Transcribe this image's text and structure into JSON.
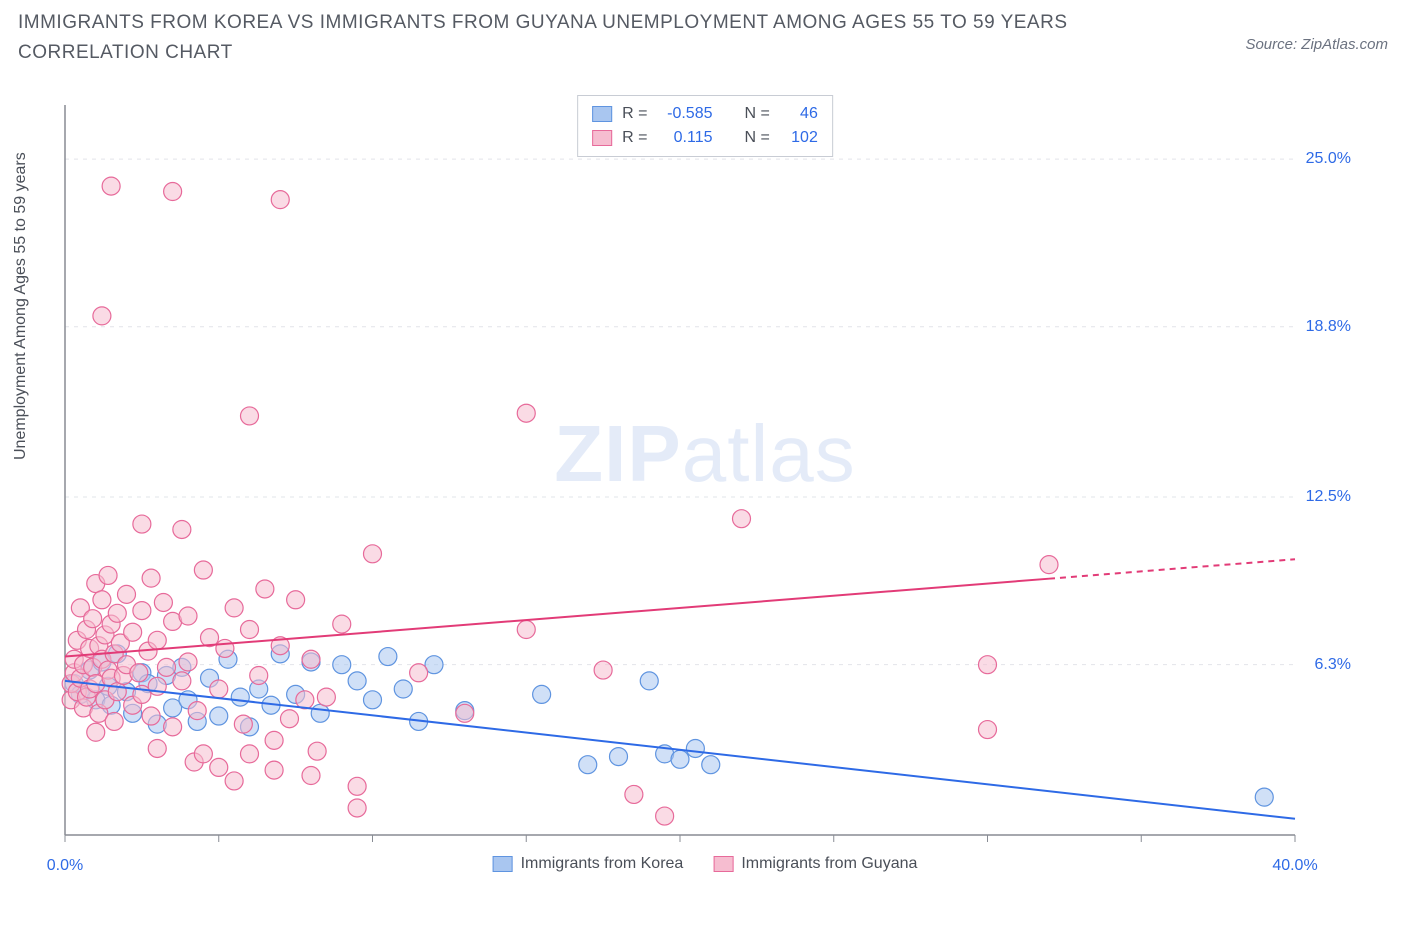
{
  "title": "IMMIGRANTS FROM KOREA VS IMMIGRANTS FROM GUYANA UNEMPLOYMENT AMONG AGES 55 TO 59 YEARS CORRELATION CHART",
  "source": "Source: ZipAtlas.com",
  "y_axis_label": "Unemployment Among Ages 55 to 59 years",
  "watermark_bold": "ZIP",
  "watermark_light": "atlas",
  "chart": {
    "type": "scatter",
    "background_color": "#ffffff",
    "grid_color": "#e2e4e9",
    "axis_color": "#888c94",
    "xlim": [
      0,
      40
    ],
    "ylim": [
      0,
      27
    ],
    "y_ticks": [
      {
        "v": 6.3,
        "label": "6.3%"
      },
      {
        "v": 12.5,
        "label": "12.5%"
      },
      {
        "v": 18.8,
        "label": "18.8%"
      },
      {
        "v": 25.0,
        "label": "25.0%"
      }
    ],
    "x_ticks_minor": [
      0,
      5,
      10,
      15,
      20,
      25,
      30,
      35,
      40
    ],
    "x_tick_labels": [
      {
        "v": 0,
        "label": "0.0%"
      },
      {
        "v": 40,
        "label": "40.0%"
      }
    ],
    "marker_radius": 9,
    "marker_stroke_width": 1.2,
    "trend_line_width": 2,
    "series": [
      {
        "name": "Immigrants from Korea",
        "fill": "#a9c6f0",
        "stroke": "#5f94e0",
        "fill_opacity": 0.55,
        "stats": {
          "R": "-0.585",
          "N": "46"
        },
        "trend": {
          "x1": 0,
          "y1": 5.7,
          "x2": 40,
          "y2": 0.6,
          "solid_to_x": 40,
          "color": "#2e6ae6"
        },
        "points": [
          [
            0.3,
            5.6
          ],
          [
            0.5,
            5.2
          ],
          [
            0.8,
            6.1
          ],
          [
            1.0,
            5.0
          ],
          [
            1.2,
            6.4
          ],
          [
            1.4,
            5.5
          ],
          [
            1.5,
            4.8
          ],
          [
            1.7,
            6.7
          ],
          [
            2.0,
            5.3
          ],
          [
            2.2,
            4.5
          ],
          [
            2.5,
            6.0
          ],
          [
            2.7,
            5.6
          ],
          [
            3.0,
            4.1
          ],
          [
            3.3,
            5.9
          ],
          [
            3.5,
            4.7
          ],
          [
            3.8,
            6.2
          ],
          [
            4.0,
            5.0
          ],
          [
            4.3,
            4.2
          ],
          [
            4.7,
            5.8
          ],
          [
            5.0,
            4.4
          ],
          [
            5.3,
            6.5
          ],
          [
            5.7,
            5.1
          ],
          [
            6.0,
            4.0
          ],
          [
            6.3,
            5.4
          ],
          [
            6.7,
            4.8
          ],
          [
            7.0,
            6.7
          ],
          [
            7.5,
            5.2
          ],
          [
            8.0,
            6.4
          ],
          [
            8.3,
            4.5
          ],
          [
            9.0,
            6.3
          ],
          [
            9.5,
            5.7
          ],
          [
            10.0,
            5.0
          ],
          [
            10.5,
            6.6
          ],
          [
            11.0,
            5.4
          ],
          [
            11.5,
            4.2
          ],
          [
            12.0,
            6.3
          ],
          [
            13.0,
            4.6
          ],
          [
            15.5,
            5.2
          ],
          [
            17.0,
            2.6
          ],
          [
            18.0,
            2.9
          ],
          [
            19.0,
            5.7
          ],
          [
            19.5,
            3.0
          ],
          [
            20.0,
            2.8
          ],
          [
            20.5,
            3.2
          ],
          [
            21.0,
            2.6
          ],
          [
            39.0,
            1.4
          ]
        ]
      },
      {
        "name": "Immigrants from Guyana",
        "fill": "#f6bdd0",
        "stroke": "#e76a9a",
        "fill_opacity": 0.55,
        "stats": {
          "R": "0.115",
          "N": "102"
        },
        "trend": {
          "x1": 0,
          "y1": 6.6,
          "x2": 40,
          "y2": 10.2,
          "solid_to_x": 32,
          "color": "#e23b77"
        },
        "points": [
          [
            0.2,
            5.0
          ],
          [
            0.2,
            5.6
          ],
          [
            0.3,
            6.0
          ],
          [
            0.3,
            6.5
          ],
          [
            0.4,
            5.3
          ],
          [
            0.4,
            7.2
          ],
          [
            0.5,
            5.8
          ],
          [
            0.5,
            8.4
          ],
          [
            0.6,
            6.3
          ],
          [
            0.6,
            4.7
          ],
          [
            0.7,
            5.1
          ],
          [
            0.7,
            7.6
          ],
          [
            0.8,
            6.9
          ],
          [
            0.8,
            5.4
          ],
          [
            0.9,
            8.0
          ],
          [
            0.9,
            6.2
          ],
          [
            1.0,
            5.6
          ],
          [
            1.0,
            9.3
          ],
          [
            1.1,
            7.0
          ],
          [
            1.1,
            4.5
          ],
          [
            1.2,
            6.5
          ],
          [
            1.2,
            8.7
          ],
          [
            1.3,
            5.0
          ],
          [
            1.3,
            7.4
          ],
          [
            1.4,
            6.1
          ],
          [
            1.4,
            9.6
          ],
          [
            1.5,
            5.8
          ],
          [
            1.5,
            7.8
          ],
          [
            1.6,
            4.2
          ],
          [
            1.6,
            6.7
          ],
          [
            1.7,
            8.2
          ],
          [
            1.7,
            5.3
          ],
          [
            1.8,
            7.1
          ],
          [
            1.9,
            5.9
          ],
          [
            2.0,
            8.9
          ],
          [
            2.0,
            6.3
          ],
          [
            2.2,
            4.8
          ],
          [
            2.2,
            7.5
          ],
          [
            2.4,
            6.0
          ],
          [
            2.5,
            5.2
          ],
          [
            2.5,
            8.3
          ],
          [
            2.7,
            6.8
          ],
          [
            2.8,
            4.4
          ],
          [
            3.0,
            7.2
          ],
          [
            3.0,
            5.5
          ],
          [
            3.2,
            8.6
          ],
          [
            3.3,
            6.2
          ],
          [
            3.5,
            4.0
          ],
          [
            3.5,
            7.9
          ],
          [
            3.8,
            5.7
          ],
          [
            4.0,
            8.1
          ],
          [
            4.0,
            6.4
          ],
          [
            4.3,
            4.6
          ],
          [
            4.5,
            9.8
          ],
          [
            4.7,
            7.3
          ],
          [
            5.0,
            5.4
          ],
          [
            5.0,
            2.5
          ],
          [
            5.2,
            6.9
          ],
          [
            5.5,
            8.4
          ],
          [
            5.8,
            4.1
          ],
          [
            6.0,
            7.6
          ],
          [
            6.0,
            3.0
          ],
          [
            6.3,
            5.9
          ],
          [
            6.5,
            9.1
          ],
          [
            6.8,
            3.5
          ],
          [
            7.0,
            7.0
          ],
          [
            7.3,
            4.3
          ],
          [
            7.5,
            8.7
          ],
          [
            8.0,
            6.5
          ],
          [
            8.0,
            2.2
          ],
          [
            8.5,
            5.1
          ],
          [
            9.0,
            7.8
          ],
          [
            9.5,
            1.0
          ],
          [
            10.0,
            10.4
          ],
          [
            1.5,
            24.0
          ],
          [
            3.5,
            23.8
          ],
          [
            7.0,
            23.5
          ],
          [
            1.2,
            19.2
          ],
          [
            6.0,
            15.5
          ],
          [
            15.0,
            15.6
          ],
          [
            2.5,
            11.5
          ],
          [
            3.8,
            11.3
          ],
          [
            3.0,
            3.2
          ],
          [
            4.2,
            2.7
          ],
          [
            5.5,
            2.0
          ],
          [
            6.8,
            2.4
          ],
          [
            8.2,
            3.1
          ],
          [
            9.5,
            1.8
          ],
          [
            11.5,
            6.0
          ],
          [
            13.0,
            4.5
          ],
          [
            15.0,
            7.6
          ],
          [
            17.5,
            6.1
          ],
          [
            18.5,
            1.5
          ],
          [
            19.5,
            0.7
          ],
          [
            22.0,
            11.7
          ],
          [
            30.0,
            6.3
          ],
          [
            30.0,
            3.9
          ],
          [
            32.0,
            10.0
          ],
          [
            1.0,
            3.8
          ],
          [
            2.8,
            9.5
          ],
          [
            4.5,
            3.0
          ],
          [
            7.8,
            5.0
          ]
        ]
      }
    ],
    "legend_labels": {
      "R": "R =",
      "N": "N ="
    }
  }
}
